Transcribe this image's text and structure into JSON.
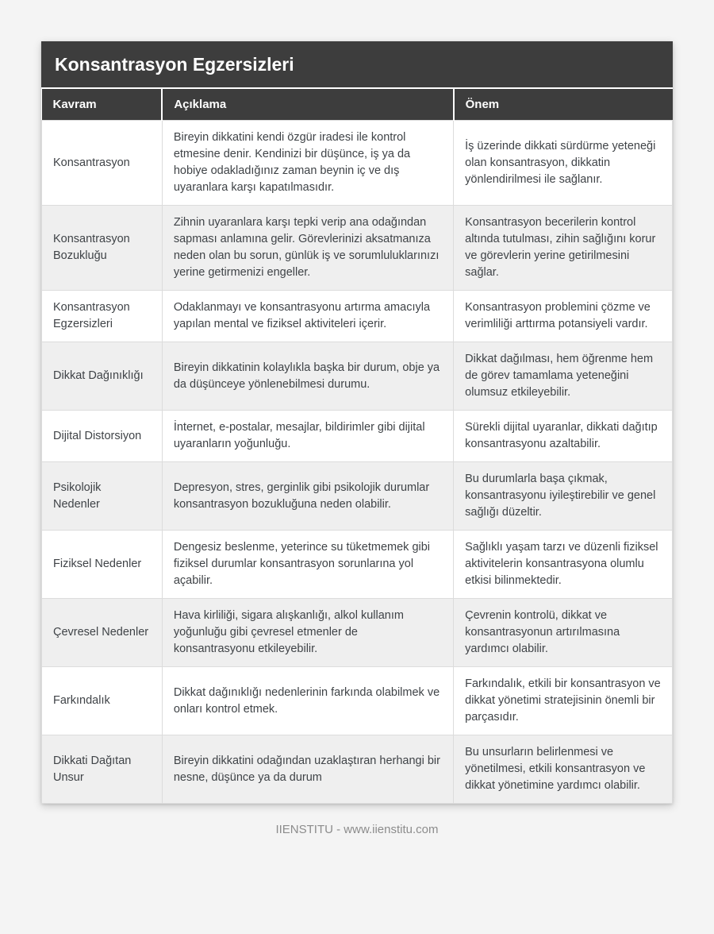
{
  "page": {
    "background_color": "#f4f4f4",
    "footer_text": "IIENSTITU - www.iienstitu.com"
  },
  "table": {
    "title": "Konsantrasyon Egzersizleri",
    "header_bg_color": "#3d3d3d",
    "alt_row_color": "#efefef",
    "columns": [
      "Kavram",
      "Açıklama",
      "Önem"
    ],
    "rows": [
      {
        "kavram": "Konsantrasyon",
        "aciklama": "Bireyin dikkatini kendi özgür iradesi ile kontrol etmesine denir. Kendinizi bir düşünce, iş ya da hobiye odakladığınız zaman beynin iç ve dış uyaranlara karşı kapatılmasıdır.",
        "onem": "İş üzerinde dikkati sürdürme yeteneği olan konsantrasyon, dikkatin yönlendirilmesi ile sağlanır."
      },
      {
        "kavram": "Konsantrasyon Bozukluğu",
        "aciklama": "Zihnin uyaranlara karşı tepki verip ana odağından sapması anlamına gelir. Görevlerinizi aksatmanıza neden olan bu sorun, günlük iş ve sorumluluklarınızı yerine getirmenizi engeller.",
        "onem": "Konsantrasyon becerilerin kontrol altında tutulması, zihin sağlığını korur ve görevlerin yerine getirilmesini sağlar."
      },
      {
        "kavram": "Konsantrasyon Egzersizleri",
        "aciklama": "Odaklanmayı ve konsantrasyonu artırma amacıyla yapılan mental ve fiziksel aktiviteleri içerir.",
        "onem": "Konsantrasyon problemini çözme ve verimliliği arttırma potansiyeli vardır."
      },
      {
        "kavram": "Dikkat Dağınıklığı",
        "aciklama": "Bireyin dikkatinin kolaylıkla başka bir durum, obje ya da düşünceye yönlenebilmesi durumu.",
        "onem": "Dikkat dağılması, hem öğrenme hem de görev tamamlama yeteneğini olumsuz etkileyebilir."
      },
      {
        "kavram": "Dijital Distorsiyon",
        "aciklama": "İnternet, e-postalar, mesajlar, bildirimler gibi dijital uyaranların yoğunluğu.",
        "onem": "Sürekli dijital uyaranlar, dikkati dağıtıp konsantrasyonu azaltabilir."
      },
      {
        "kavram": "Psikolojik Nedenler",
        "aciklama": "Depresyon, stres, gerginlik gibi psikolojik durumlar konsantrasyon bozukluğuna neden olabilir.",
        "onem": "Bu durumlarla başa çıkmak, konsantrasyonu iyileştirebilir ve genel sağlığı düzeltir."
      },
      {
        "kavram": "Fiziksel Nedenler",
        "aciklama": "Dengesiz beslenme, yeterince su tüketmemek gibi fiziksel durumlar konsantrasyon sorunlarına yol açabilir.",
        "onem": "Sağlıklı yaşam tarzı ve düzenli fiziksel aktivitelerin konsantrasyona olumlu etkisi bilinmektedir."
      },
      {
        "kavram": "Çevresel Nedenler",
        "aciklama": "Hava kirliliği, sigara alışkanlığı, alkol kullanım yoğunluğu gibi çevresel etmenler de konsantrasyonu etkileyebilir.",
        "onem": "Çevrenin kontrolü, dikkat ve konsantrasyonun artırılmasına yardımcı olabilir."
      },
      {
        "kavram": "Farkındalık",
        "aciklama": "Dikkat dağınıklığı nedenlerinin farkında olabilmek ve onları kontrol etmek.",
        "onem": "Farkındalık, etkili bir konsantrasyon ve dikkat yönetimi stratejisinin önemli bir parçasıdır."
      },
      {
        "kavram": "Dikkati Dağıtan Unsur",
        "aciklama": "Bireyin dikkatini odağından uzaklaştıran herhangi bir nesne, düşünce ya da durum",
        "onem": "Bu unsurların belirlenmesi ve yönetilmesi, etkili konsantrasyon ve dikkat yönetimine yardımcı olabilir."
      }
    ]
  }
}
